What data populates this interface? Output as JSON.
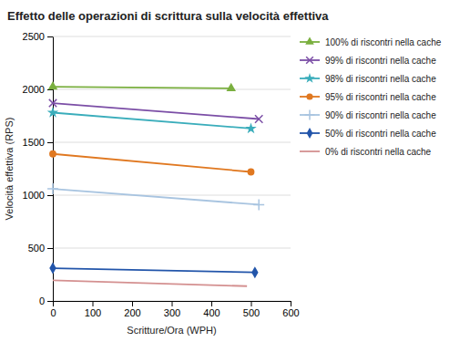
{
  "chart_data": {
    "type": "line",
    "title": "Effetto delle operazioni di scrittura sulla velocità effettiva",
    "xlabel": "Scritture/Ora (WPH)",
    "ylabel": "Velocità effettiva (RPS)",
    "xlim": [
      0,
      600
    ],
    "ylim": [
      0,
      2500
    ],
    "xticks": [
      0,
      100,
      200,
      300,
      400,
      500,
      600
    ],
    "yticks": [
      0,
      500,
      1000,
      1500,
      2000,
      2500
    ],
    "grid": true,
    "legend": "right",
    "series": [
      {
        "name": "100% di riscontri nella cache",
        "color": "#7AAF3F",
        "marker": "triangle",
        "x": [
          0,
          450
        ],
        "values": [
          2025,
          2010
        ]
      },
      {
        "name": "99% di riscontri nella cache",
        "color": "#7B4EA6",
        "marker": "x",
        "x": [
          0,
          520
        ],
        "values": [
          1870,
          1720
        ]
      },
      {
        "name": "98% di riscontri nella cache",
        "color": "#3AADBB",
        "marker": "star",
        "x": [
          0,
          500
        ],
        "values": [
          1780,
          1630
        ]
      },
      {
        "name": "95% di riscontri nella cache",
        "color": "#E07820",
        "marker": "circle",
        "x": [
          0,
          500
        ],
        "values": [
          1390,
          1220
        ]
      },
      {
        "name": "90% di riscontri nella cache",
        "color": "#A8C4E0",
        "marker": "plus",
        "x": [
          0,
          520
        ],
        "values": [
          1060,
          910
        ]
      },
      {
        "name": "50% di riscontri nella cache",
        "color": "#2255AA",
        "marker": "diamond",
        "x": [
          0,
          510
        ],
        "values": [
          310,
          270
        ]
      },
      {
        "name": "0% di riscontri nella cache",
        "color": "#D49090",
        "marker": "none",
        "x": [
          0,
          490
        ],
        "values": [
          195,
          140
        ]
      }
    ]
  }
}
